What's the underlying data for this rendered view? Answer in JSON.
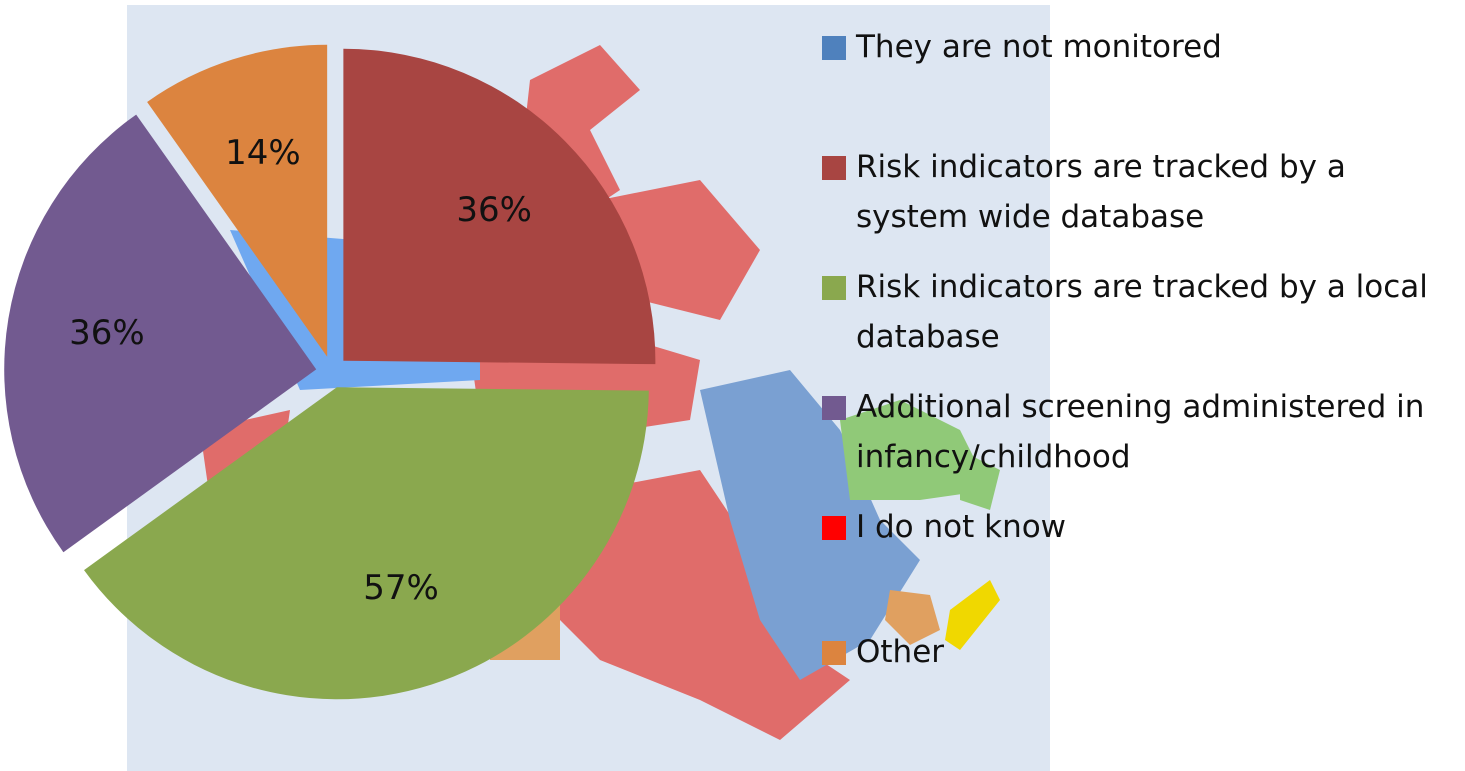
{
  "chart_data": {
    "type": "pie",
    "categories": [
      "They are not monitored",
      "Risk indicators are tracked by a system wide database",
      "Risk indicators are tracked by a local database",
      "Additional screening administered in infancy/childhood",
      "I do not know",
      "Other"
    ],
    "values": [
      0,
      36,
      57,
      36,
      0,
      14
    ],
    "value_labels": [
      null,
      "36%",
      "57%",
      "36%",
      null,
      "14%"
    ],
    "colors": [
      "#4f81bd",
      "#a84542",
      "#8aa84e",
      "#725a90",
      "#ff0000",
      "#dc843f"
    ],
    "legend": "right"
  }
}
